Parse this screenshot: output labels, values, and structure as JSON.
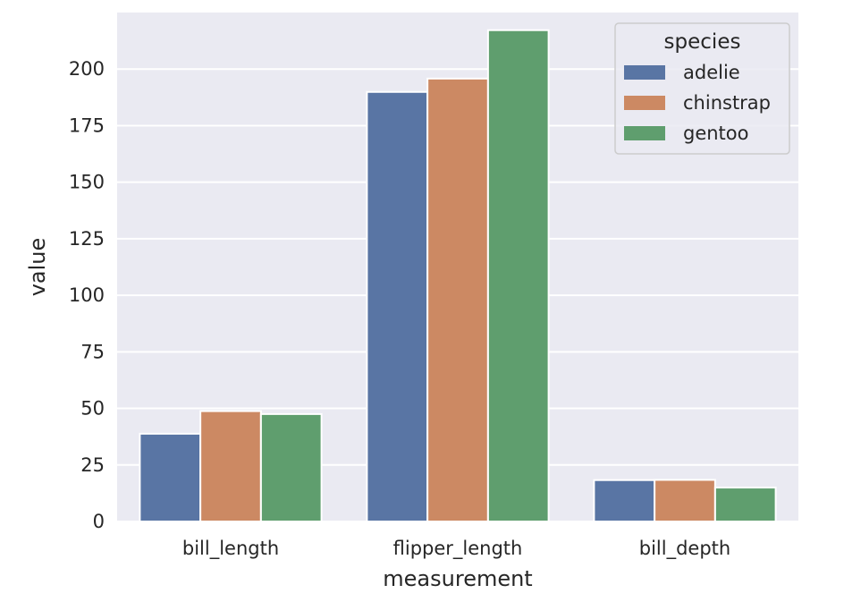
{
  "chart_data": {
    "type": "bar",
    "title": "",
    "xlabel": "measurement",
    "ylabel": "value",
    "categories": [
      "bill_length",
      "flipper_length",
      "bill_depth"
    ],
    "series": [
      {
        "name": "adelie",
        "color": "#5975a4",
        "values": [
          38.8,
          189.9,
          18.3
        ]
      },
      {
        "name": "chinstrap",
        "color": "#cc8963",
        "values": [
          48.8,
          195.8,
          18.4
        ]
      },
      {
        "name": "gentoo",
        "color": "#5f9e6e",
        "values": [
          47.5,
          217.2,
          15.0
        ]
      }
    ],
    "ylim": [
      0,
      225
    ],
    "yticks": [
      0,
      25,
      50,
      75,
      100,
      125,
      150,
      175,
      200
    ],
    "ytick_labels": [
      "0",
      "25",
      "50",
      "75",
      "100",
      "125",
      "150",
      "175",
      "200"
    ],
    "legend": {
      "title": "species",
      "position": "top-right"
    },
    "grid": true,
    "background_color": "#eaeaf2"
  }
}
